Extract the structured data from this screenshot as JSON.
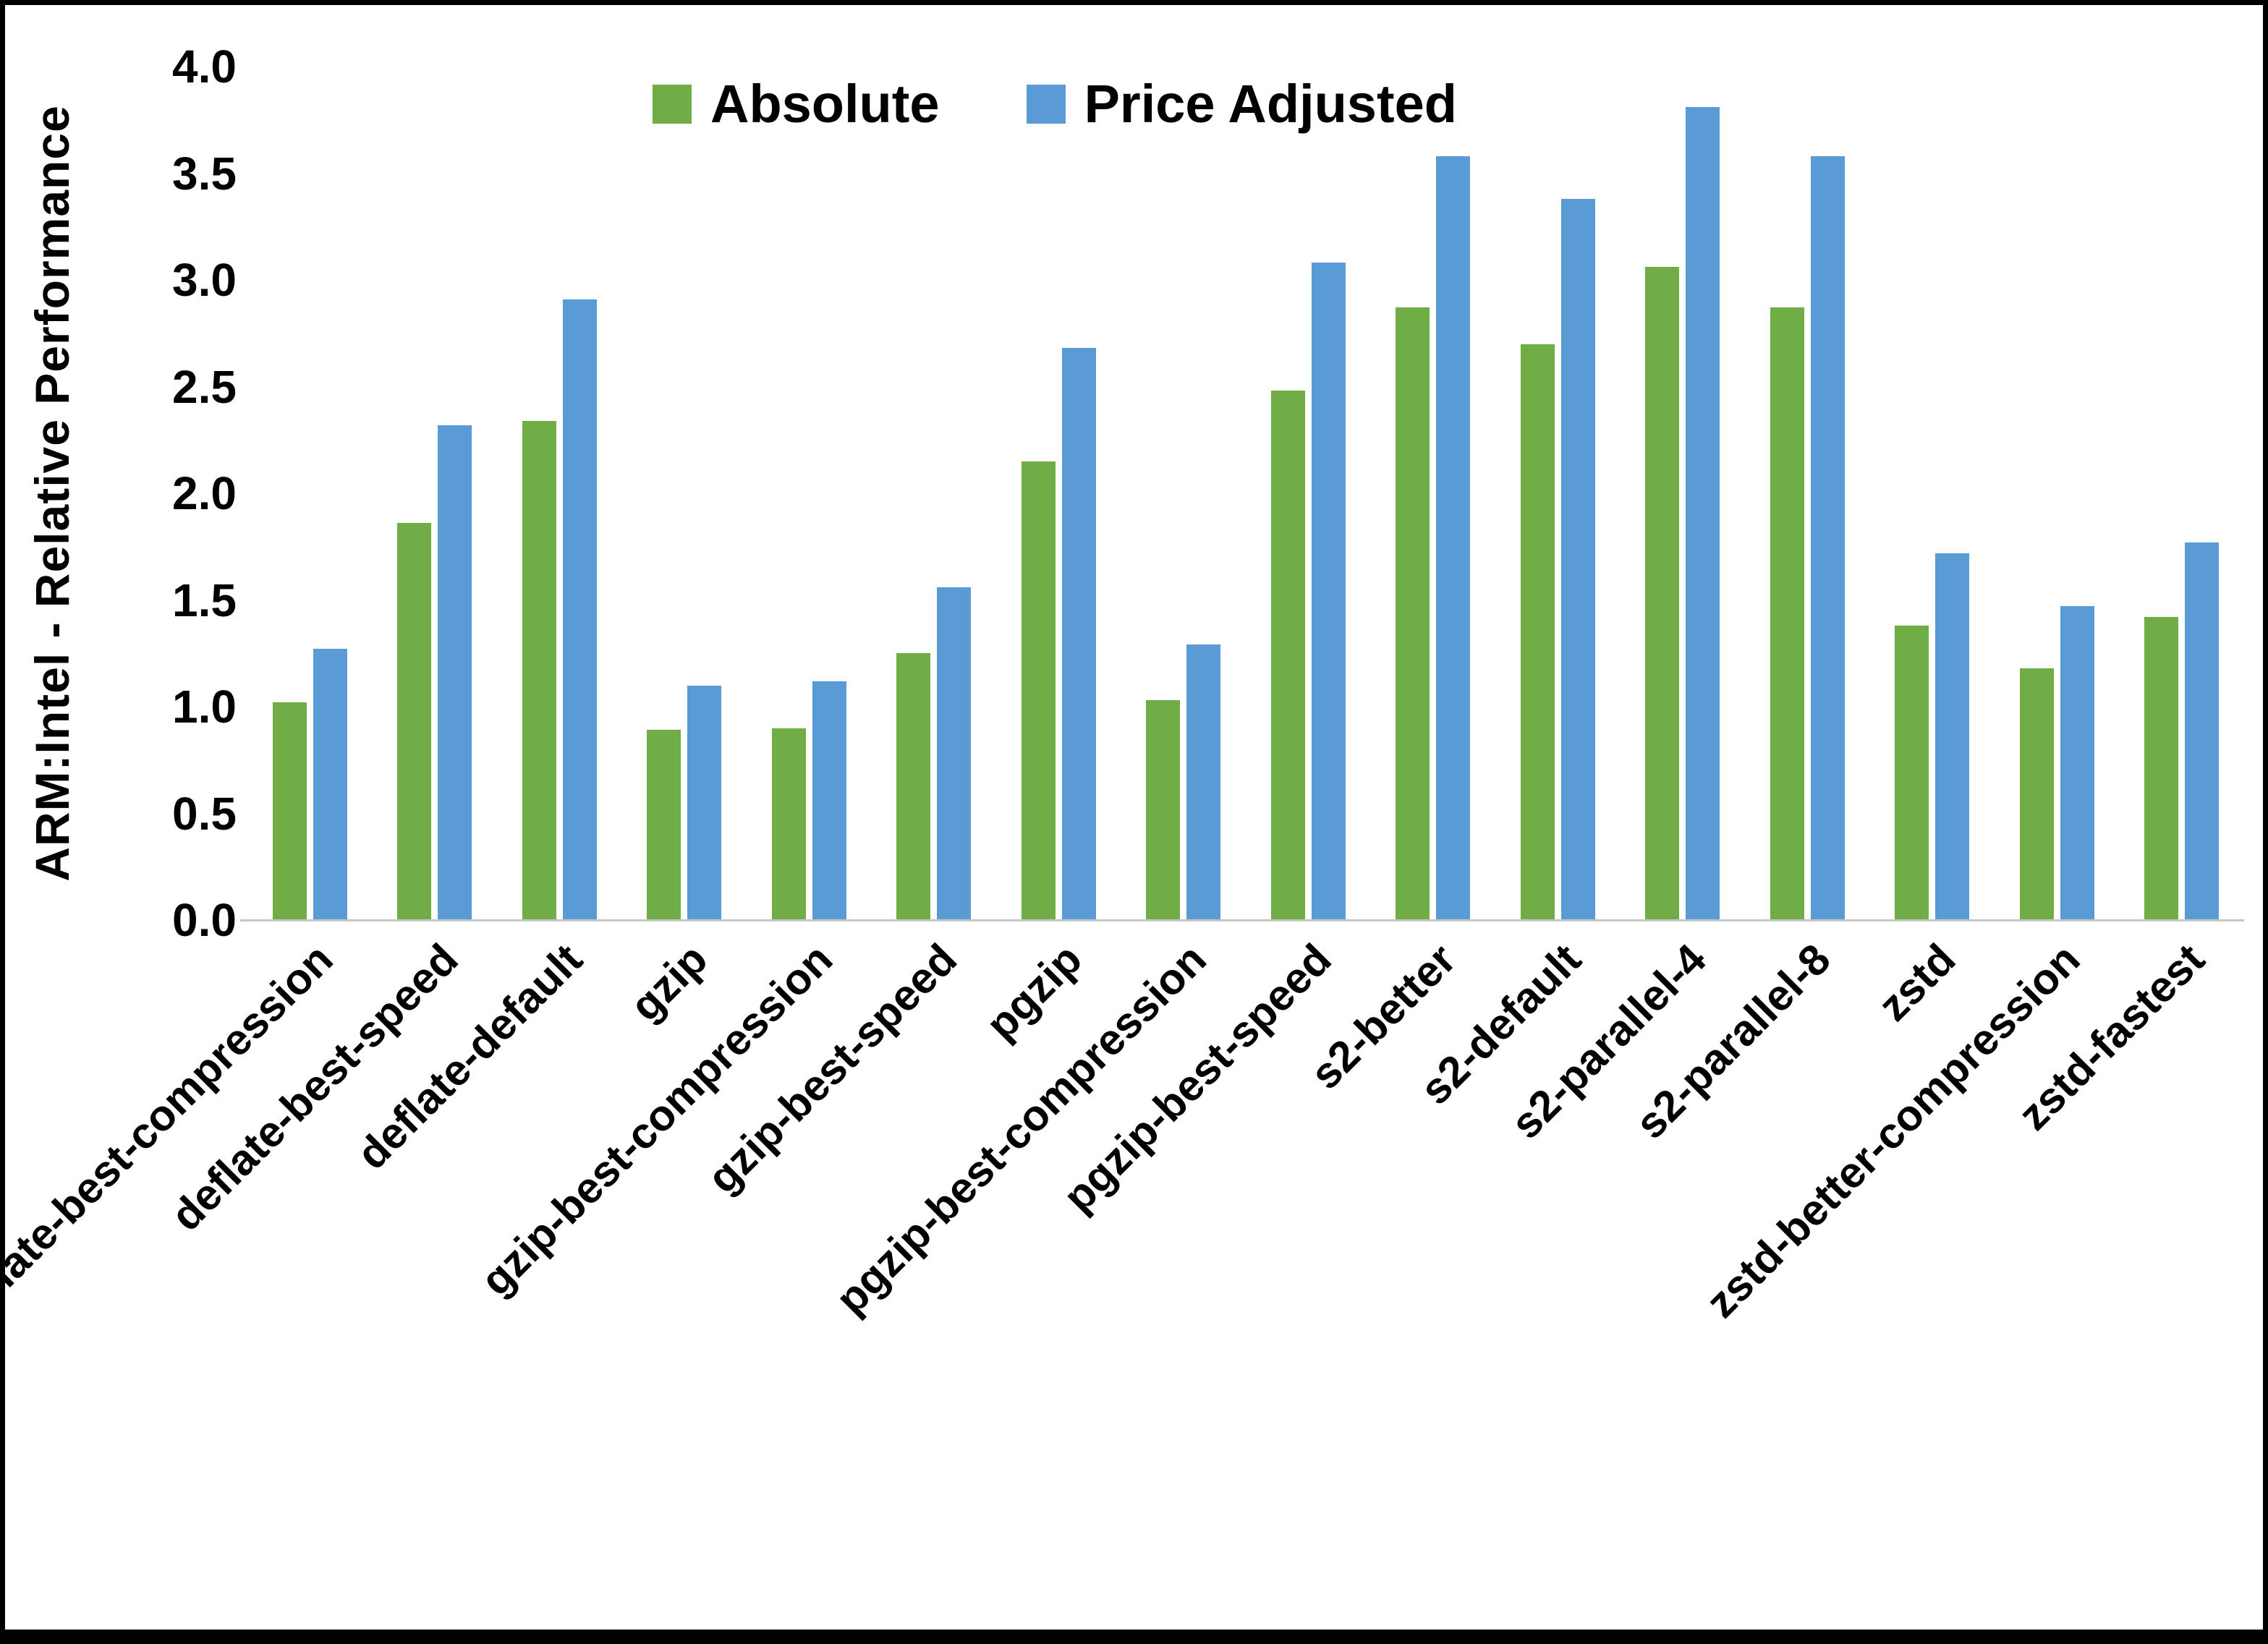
{
  "frame": {
    "background": "#ffffff",
    "border_color": "#000000"
  },
  "chart_data": {
    "type": "bar",
    "title": "",
    "xlabel": "",
    "ylabel": "ARM:Intel - Relative Performance",
    "ylim": [
      0,
      4.0
    ],
    "ytick_labels": [
      "0.0",
      "0.5",
      "1.0",
      "1.5",
      "2.0",
      "2.5",
      "3.0",
      "3.5",
      "4.0"
    ],
    "grid": false,
    "legend_position": "top-center",
    "categories": [
      "deflate-best-compression",
      "deflate-best-speed",
      "deflate-default",
      "gzip",
      "gzip-best-compression",
      "gzip-best-speed",
      "pgzip",
      "pgzip-best-compression",
      "pgzip-best-speed",
      "s2-better",
      "s2-default",
      "s2-parallel-4",
      "s2-parallel-8",
      "zstd",
      "zstd-better-compression",
      "zstd-fastest"
    ],
    "series": [
      {
        "name": "Absolute",
        "color": "#70AD47",
        "values": [
          1.02,
          1.86,
          2.34,
          0.89,
          0.9,
          1.25,
          2.15,
          1.03,
          2.48,
          2.87,
          2.7,
          3.06,
          2.87,
          1.38,
          1.18,
          1.42
        ]
      },
      {
        "name": "Price Adjusted",
        "color": "#5B9BD5",
        "values": [
          1.27,
          2.32,
          2.91,
          1.1,
          1.12,
          1.56,
          2.68,
          1.29,
          3.08,
          3.58,
          3.38,
          3.81,
          3.58,
          1.72,
          1.47,
          1.77
        ]
      }
    ]
  }
}
